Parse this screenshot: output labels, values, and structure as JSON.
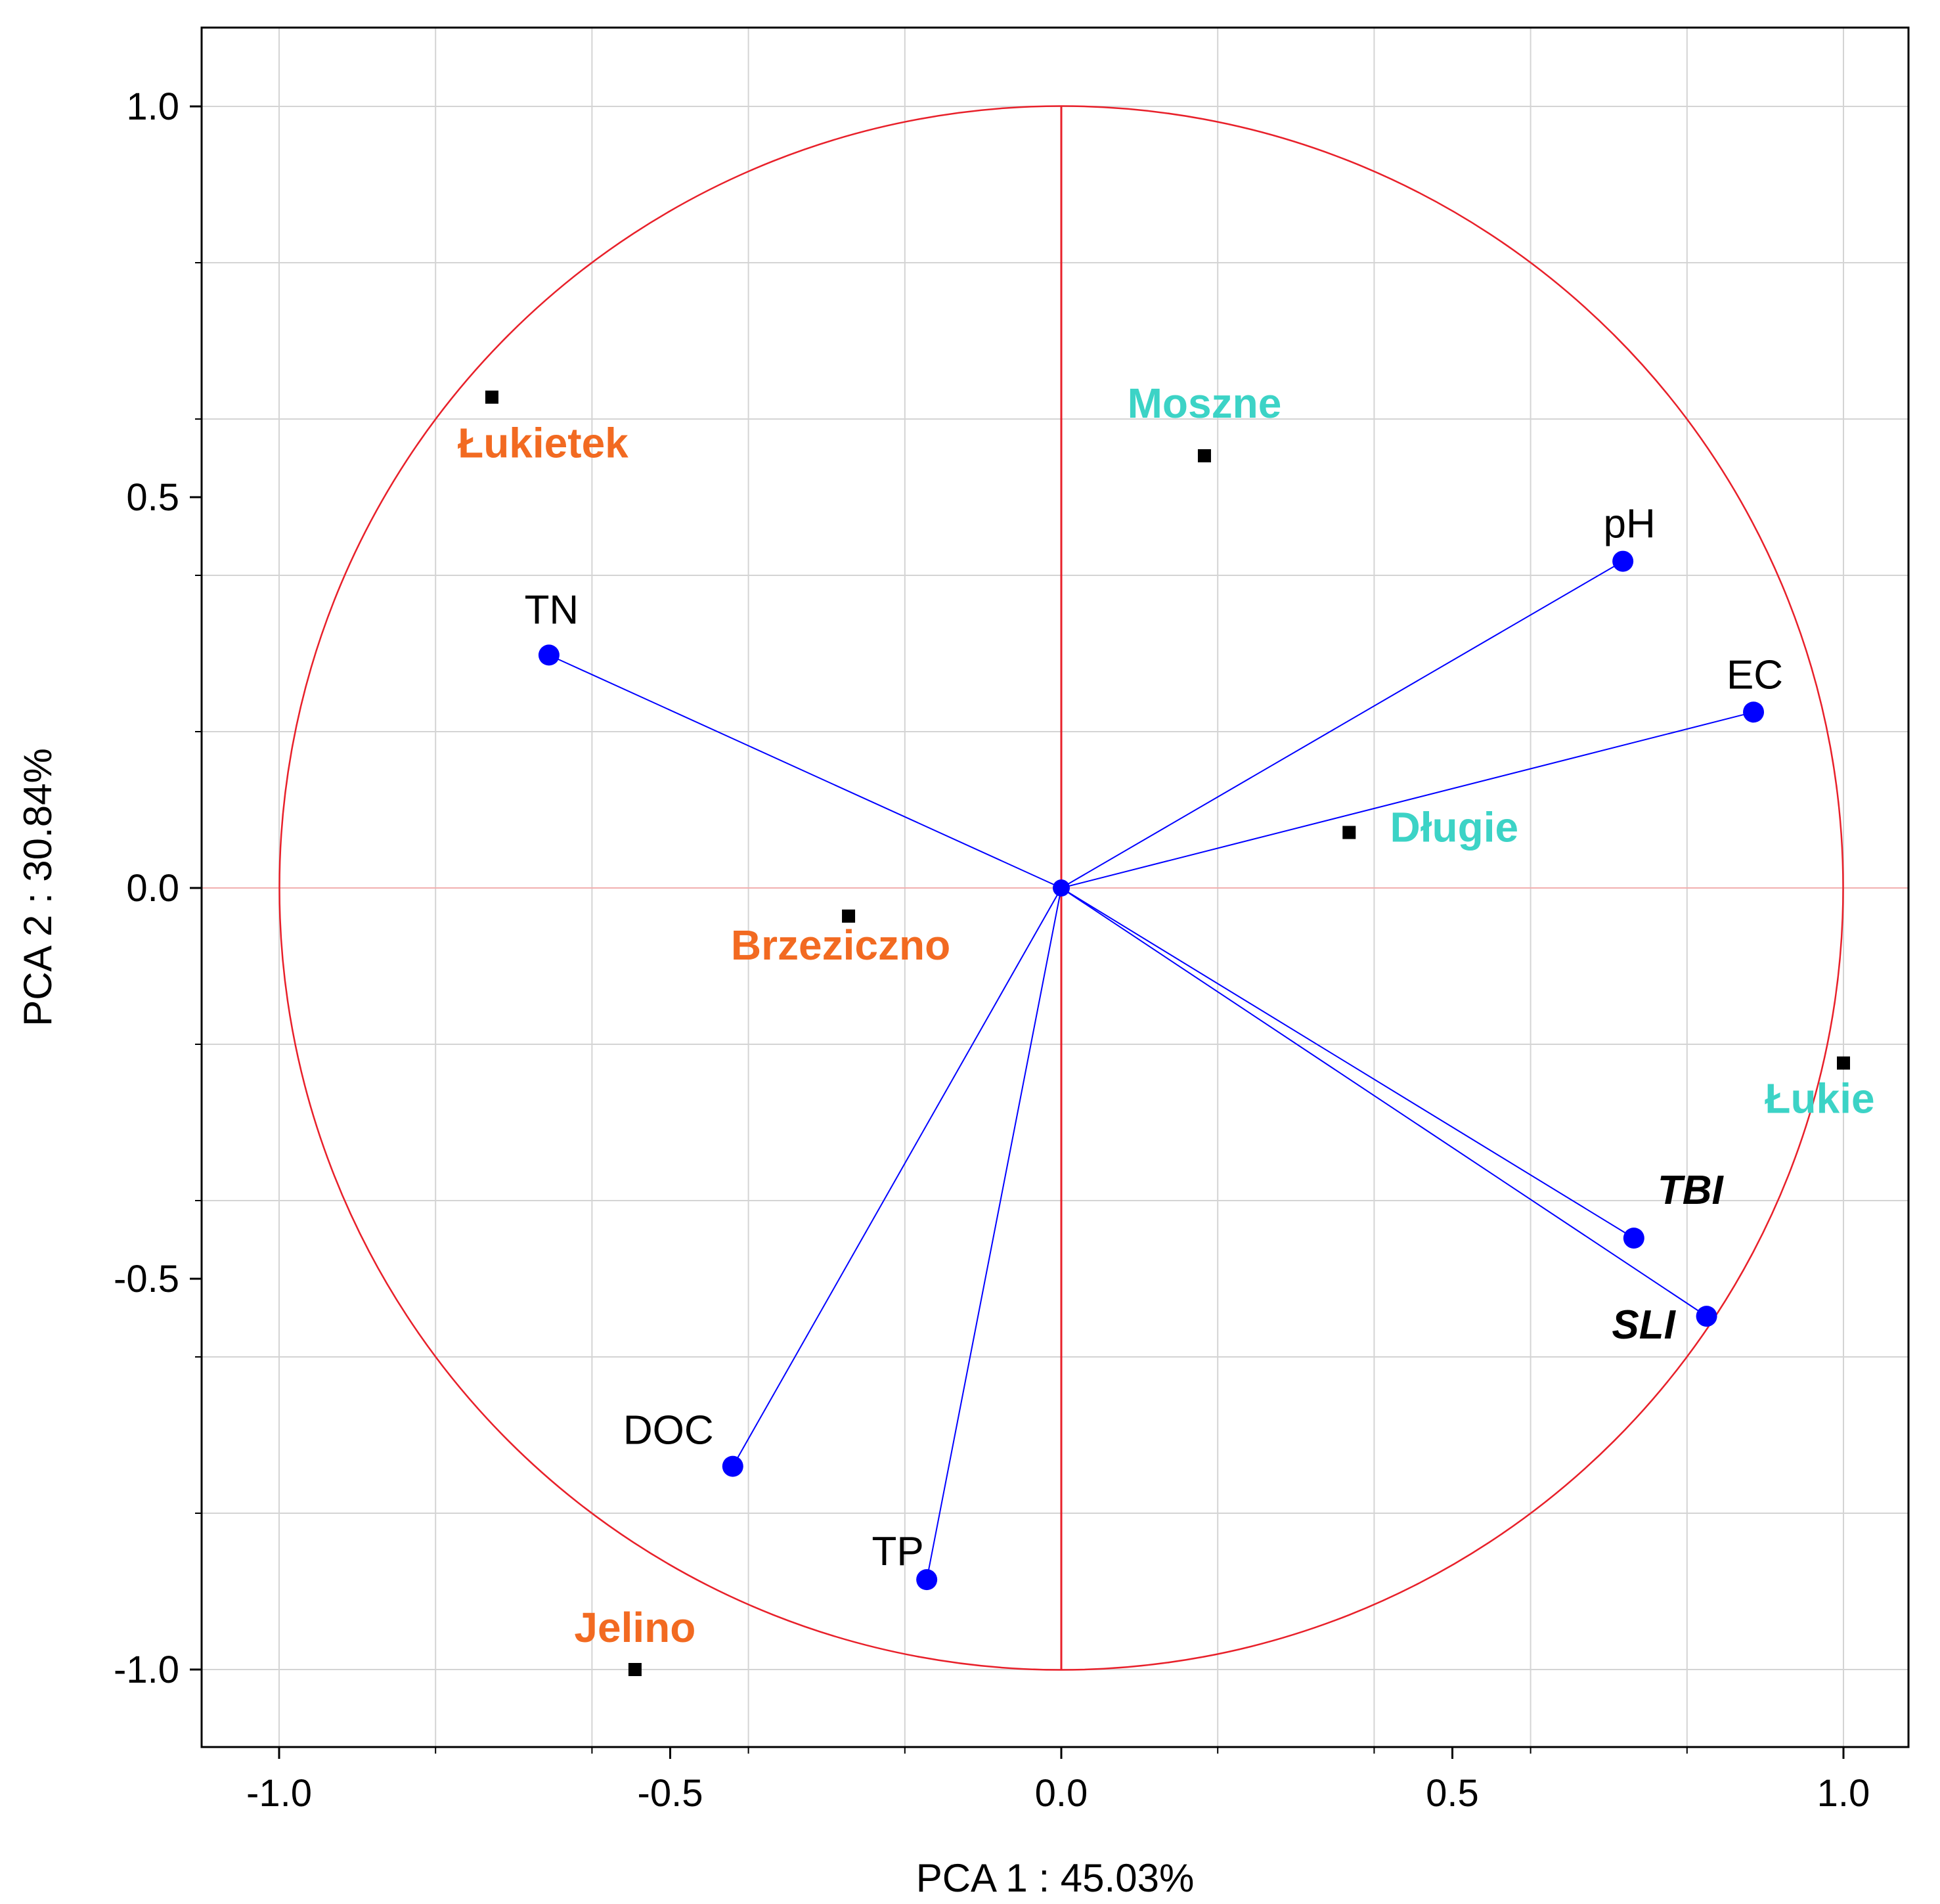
{
  "chart_data": {
    "type": "scatter",
    "subtype": "pca-correlation-circle",
    "xlabel": "PCA 1 : 45.03%",
    "ylabel": "PCA 2 : 30.84%",
    "xlim": [
      -1.1,
      1.1
    ],
    "ylim": [
      -1.1,
      1.1
    ],
    "xticks": [
      "-1.0",
      "-0.5",
      "0.0",
      "0.5",
      "1.0"
    ],
    "yticks": [
      "1.0",
      "0.5",
      "0.0",
      "-0.5",
      "-1.0"
    ],
    "grid": true,
    "unit_circle": true,
    "colors": {
      "circle": "#e8202a",
      "loading": "#0000ff",
      "orange_site": "#f26a21",
      "teal_site": "#3cd3c6",
      "site_marker": "#000000",
      "grid": "#d4d4d4"
    },
    "variables": [
      {
        "name": "TN",
        "x": -0.655,
        "y": 0.298,
        "style": "normal"
      },
      {
        "name": "pH",
        "x": 0.718,
        "y": 0.418,
        "style": "normal"
      },
      {
        "name": "EC",
        "x": 0.885,
        "y": 0.225,
        "style": "normal"
      },
      {
        "name": "TBI",
        "x": 0.732,
        "y": -0.448,
        "style": "bold-italic"
      },
      {
        "name": "SLI",
        "x": 0.825,
        "y": -0.548,
        "style": "bold-italic"
      },
      {
        "name": "DOC",
        "x": -0.42,
        "y": -0.74,
        "style": "normal"
      },
      {
        "name": "TP",
        "x": -0.172,
        "y": -0.885,
        "style": "normal"
      }
    ],
    "sites": [
      {
        "name": "Łukietek",
        "x": -0.728,
        "y": 0.628,
        "color": "orange"
      },
      {
        "name": "Moszne",
        "x": 0.183,
        "y": 0.553,
        "color": "teal"
      },
      {
        "name": "Długie",
        "x": 0.368,
        "y": 0.071,
        "color": "teal"
      },
      {
        "name": "Brzeziczno",
        "x": -0.272,
        "y": -0.036,
        "color": "orange"
      },
      {
        "name": "Łukie",
        "x": 1.0,
        "y": -0.224,
        "color": "teal"
      },
      {
        "name": "Jelino",
        "x": -0.545,
        "y": -1.0,
        "color": "orange"
      }
    ]
  }
}
